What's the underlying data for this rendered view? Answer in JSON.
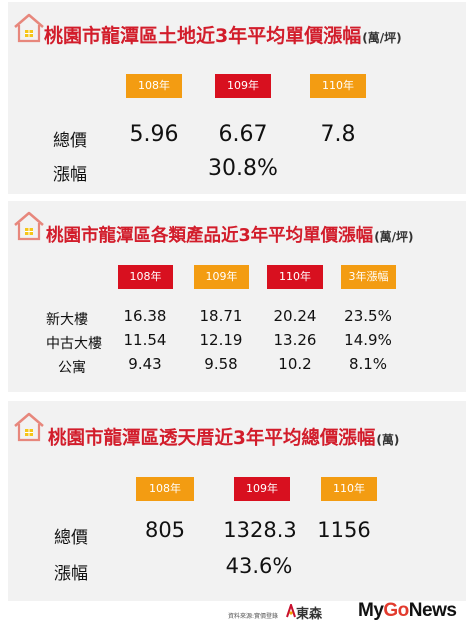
{
  "colors": {
    "title_red": "#d21d2b",
    "badge_orange": "#f39c12",
    "badge_red": "#d8101f",
    "panel_bg": "#f2f2f2"
  },
  "icons": {
    "title": "house-icon"
  },
  "section1": {
    "title": "桃園市龍潭區土地近3年平均單價漲幅",
    "unit": "(萬/坪)",
    "years": [
      "108年",
      "109年",
      "110年"
    ],
    "rows": [
      {
        "label": "總價",
        "values": [
          "5.96",
          "6.67",
          "7.8"
        ]
      },
      {
        "label": "漲幅",
        "value": "30.8%"
      }
    ]
  },
  "section2": {
    "title": "桃園市龍潭區各類產品近3年平均單價漲幅",
    "unit": "(萬/坪)",
    "headers": [
      "108年",
      "109年",
      "110年",
      "3年漲幅"
    ],
    "rows": [
      {
        "label": "新大樓",
        "values": [
          "16.38",
          "18.71",
          "20.24",
          "23.5%"
        ]
      },
      {
        "label": "中古大樓",
        "values": [
          "11.54",
          "12.19",
          "13.26",
          "14.9%"
        ]
      },
      {
        "label": "公寓",
        "values": [
          "9.43",
          "9.58",
          "10.2",
          "8.1%"
        ]
      }
    ]
  },
  "section3": {
    "title": "桃園市龍潭區透天厝近3年平均總價漲幅",
    "unit": "(萬)",
    "years": [
      "108年",
      "109年",
      "110年"
    ],
    "rows": [
      {
        "label": "總價",
        "values": [
          "805",
          "1328.3",
          "1156"
        ]
      },
      {
        "label": "漲幅",
        "value": "43.6%"
      }
    ]
  },
  "footer": {
    "source": "資料來源:實價登錄",
    "brand": "東森",
    "logo_my": "My",
    "logo_go": "Go",
    "logo_news": "News"
  }
}
